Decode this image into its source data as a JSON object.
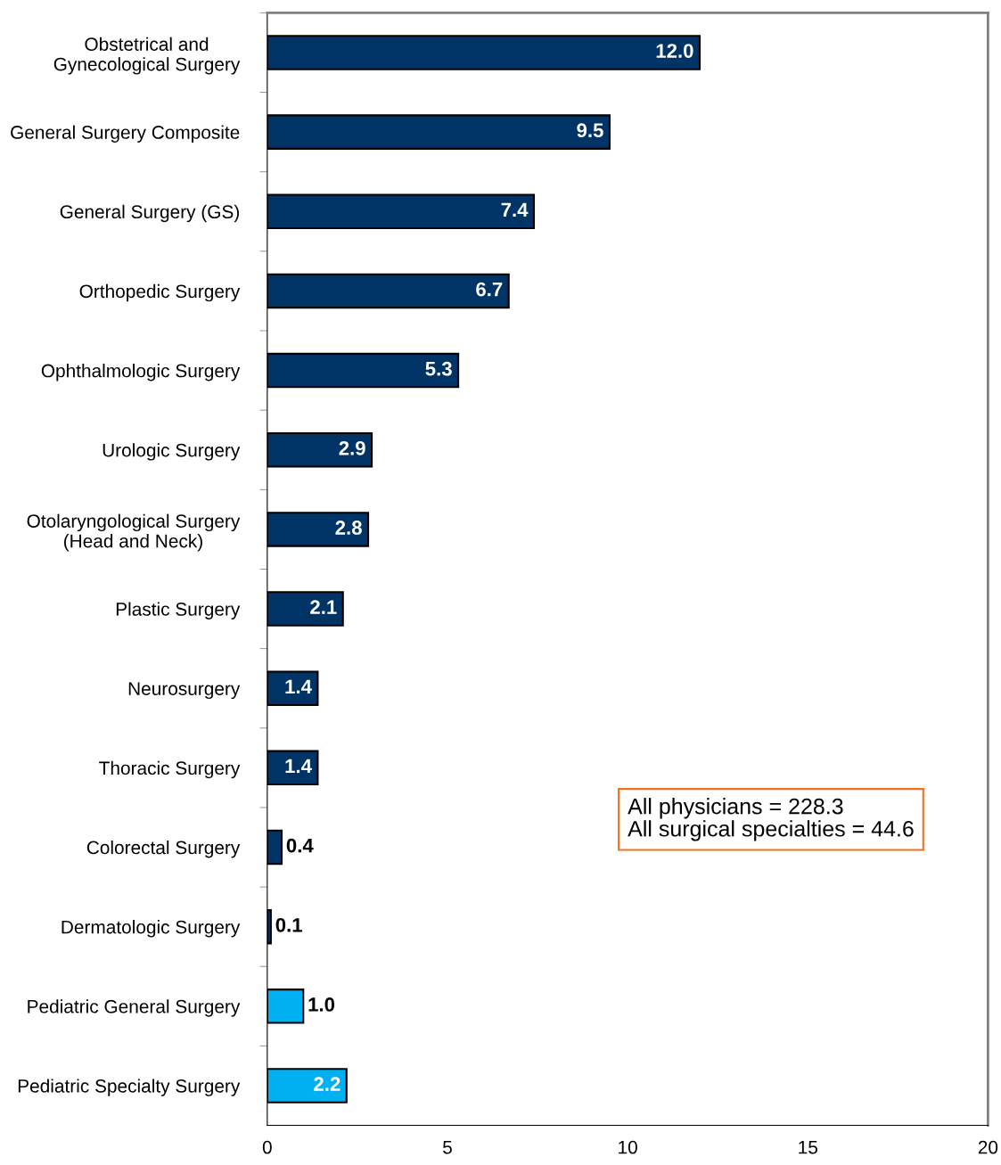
{
  "chart_data": {
    "type": "bar",
    "orientation": "horizontal",
    "categories": [
      "Obstetrical and\nGynecological Surgery",
      "General Surgery Composite",
      "General Surgery (GS)",
      "Orthopedic Surgery",
      "Ophthalmologic Surgery",
      "Urologic Surgery",
      "Otolaryngological Surgery\n(Head and Neck)",
      "Plastic Surgery",
      "Neurosurgery",
      "Thoracic Surgery",
      "Colorectal Surgery",
      "Dermatologic Surgery",
      "Pediatric General Surgery",
      "Pediatric Specialty Surgery"
    ],
    "values": [
      12.0,
      9.5,
      7.4,
      6.7,
      5.3,
      2.9,
      2.8,
      2.1,
      1.4,
      1.4,
      0.4,
      0.1,
      1.0,
      2.2
    ],
    "colors": [
      "#003366",
      "#003366",
      "#003366",
      "#003366",
      "#003366",
      "#003366",
      "#003366",
      "#003366",
      "#003366",
      "#003366",
      "#003366",
      "#003366",
      "#00b0f0",
      "#00b0f0"
    ],
    "value_labels": [
      "12.0",
      "9.5",
      "7.4",
      "6.7",
      "5.3",
      "2.9",
      "2.8",
      "2.1",
      "1.4",
      "1.4",
      "0.4",
      "0.1",
      "1.0",
      "2.2"
    ],
    "xlim": [
      0,
      20
    ],
    "xticks": [
      0,
      5,
      10,
      15,
      20
    ],
    "grid": false,
    "annotations": [
      "All physicians = 228.3",
      "All surgical specialties = 44.6"
    ]
  }
}
